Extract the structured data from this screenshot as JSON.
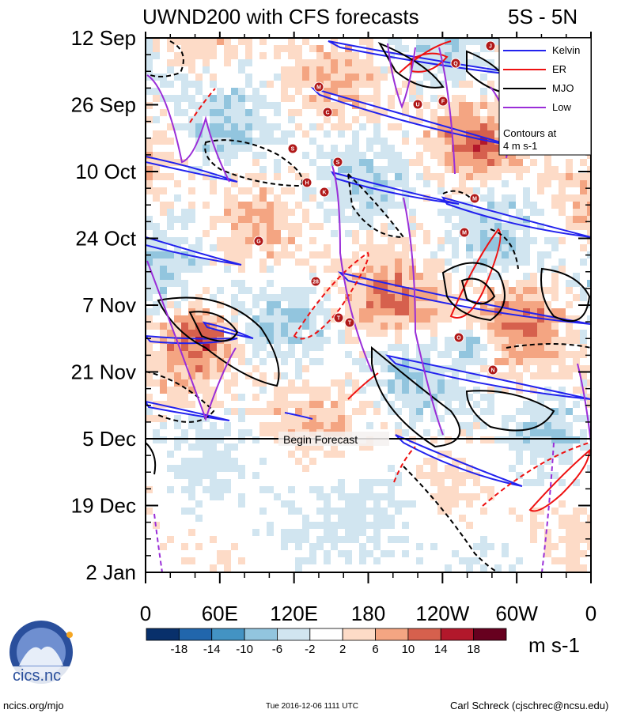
{
  "title": "UWND200 with CFS forecasts",
  "region": "5S - 5N",
  "chart_data": {
    "type": "heatmap",
    "title": "UWND200 with CFS forecasts",
    "region": "5S - 5N",
    "y_labels": [
      "12 Sep",
      "26 Sep",
      "10 Oct",
      "24 Oct",
      "7 Nov",
      "21 Nov",
      "5 Dec",
      "19 Dec",
      "2 Jan"
    ],
    "x_labels": [
      "0",
      "60E",
      "120E",
      "180",
      "120W",
      "60W",
      "0"
    ],
    "x_values": [
      0,
      60,
      120,
      180,
      240,
      300,
      360
    ],
    "forecast_start": "5 Dec",
    "forecast_label": "Begin Forecast",
    "colorbar": {
      "levels": [
        -18,
        -14,
        -10,
        -6,
        -2,
        2,
        6,
        10,
        14,
        18
      ],
      "tick_labels": [
        "-18",
        "-14",
        "-10",
        "-6",
        "-2",
        "2",
        "6",
        "10",
        "14",
        "18"
      ],
      "colors": [
        "#08306b",
        "#2166ac",
        "#4393c3",
        "#92c5de",
        "#d1e5f0",
        "#ffffff",
        "#fddbc7",
        "#f4a582",
        "#d6604d",
        "#b2182b",
        "#67001f"
      ],
      "units": "m s-1"
    },
    "legend": {
      "entries": [
        {
          "label": "Kelvin",
          "color": "#2222ee"
        },
        {
          "label": "ER",
          "color": "#ee1111"
        },
        {
          "label": "MJO",
          "color": "#000000"
        },
        {
          "label": "Low",
          "color": "#9a2ed8"
        }
      ],
      "note": "Contours at 4 m s-1",
      "position": "top-right"
    },
    "storms": [
      "J",
      "Q",
      "M",
      "U",
      "F",
      "C",
      "S",
      "S",
      "H",
      "K",
      "G",
      "M",
      "M",
      "28",
      "T",
      "T",
      "O",
      "N"
    ]
  },
  "footer": {
    "logo_text": "cics.nc",
    "left": "ncics.org/mjo",
    "center": "Tue 2016-12-06 1111 UTC",
    "right": "Carl Schreck (cjschrec@ncsu.edu)"
  }
}
